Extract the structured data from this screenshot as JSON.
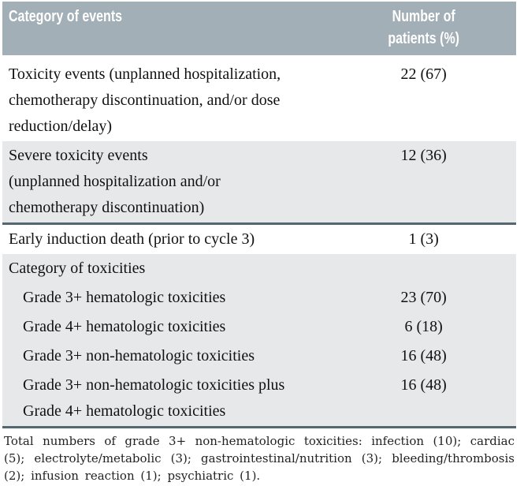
{
  "colors": {
    "header_bg": "#A3AFB7",
    "header_text": "#FFFFFF",
    "row_bg": "#FFFFFF",
    "row_alt_bg": "#E6E8E9",
    "rule": "#52676F",
    "body_text": "#111111",
    "footnote_text": "#222222"
  },
  "table": {
    "header": {
      "category_label": "Category of events",
      "number_label": "Number of\npatients (%)"
    },
    "rows": [
      {
        "label": "Toxicity events (unplanned hospitalization,\nchemotherapy discontinuation, and/or dose\nreduction/delay)",
        "value": "22 (67)"
      },
      {
        "label": "Severe toxicity events\n(unplanned hospitalization and/or\nchemotherapy discontinuation)",
        "value": "12 (36)"
      },
      {
        "label": "Early induction death (prior to cycle 3)",
        "value": "1 (3)"
      },
      {
        "label": "Category of toxicities",
        "value": ""
      },
      {
        "label": "Grade 3+ hematologic toxicities",
        "value": "23 (70)"
      },
      {
        "label": "Grade 4+ hematologic toxicities",
        "value": "6 (18)"
      },
      {
        "label": "Grade 3+ non-hematologic toxicities",
        "value": "16 (48)"
      },
      {
        "label": "Grade 3+ non-hematologic toxicities plus\nGrade 4+ hematologic toxicities",
        "value": "16 (48)"
      }
    ],
    "footnote": "Total numbers of grade 3+ non-hematologic toxicities: infection (10); cardiac (5); electrolyte/metabolic (3); gastrointestinal/nutrition (3); bleeding/thrombosis (2); infusion reaction (1); psychiatric (1)."
  }
}
